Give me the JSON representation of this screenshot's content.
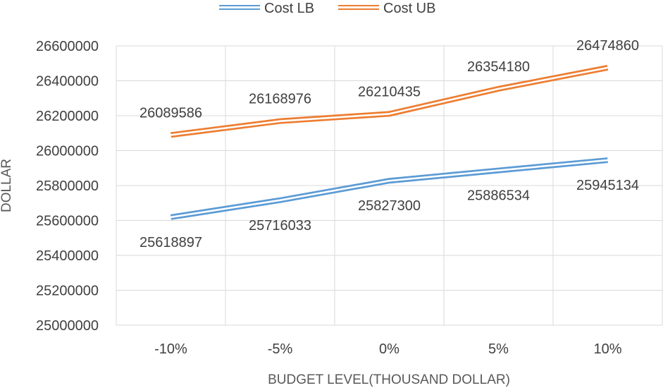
{
  "chart_data": {
    "type": "line",
    "categories": [
      "-10%",
      "-5%",
      "0%",
      "5%",
      "10%"
    ],
    "series": [
      {
        "name": "Cost LB",
        "color": "#5b9bd5",
        "values": [
          25618897,
          25716033,
          25827300,
          25886534,
          25945134
        ],
        "label_position": "below"
      },
      {
        "name": "Cost UB",
        "color": "#ed7d31",
        "values": [
          26089586,
          26168976,
          26210435,
          26354180,
          26474860
        ],
        "label_position": "above"
      }
    ],
    "data_labels": {
      "cost_lb": [
        "25618897",
        "25716033",
        "25827300",
        "25886534",
        "25945134"
      ],
      "cost_ub": [
        "26089586",
        "26168976",
        "26210435",
        "26354180",
        "26474860"
      ]
    },
    "y_ticks": [
      "25000000",
      "25200000",
      "25400000",
      "25600000",
      "25800000",
      "26000000",
      "26200000",
      "26400000",
      "26600000"
    ],
    "xlabel": "BUDGET LEVEL(THOUSAND DOLLAR)",
    "ylabel": "DOLLAR",
    "ylim": [
      25000000,
      26600000
    ],
    "grid": true,
    "legend_position": "top"
  }
}
